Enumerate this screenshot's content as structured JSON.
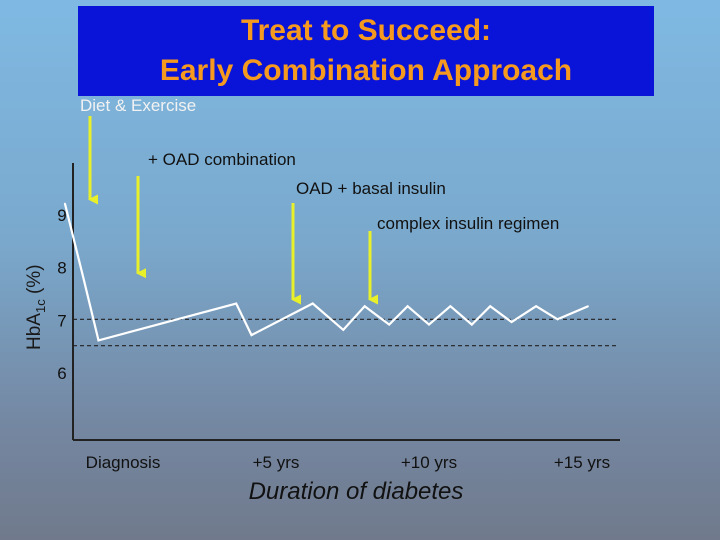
{
  "title": {
    "line1": "Treat to Succeed:",
    "line2": "Early Combination Approach"
  },
  "colors": {
    "title_bg": "#0a14d8",
    "title_text": "#f59a1e",
    "arrow": "#e8f02a",
    "line": "#ffffff",
    "axis": "#222222"
  },
  "chart_data": {
    "type": "line",
    "ylabel_main": "HbA",
    "ylabel_sub": "1c",
    "ylabel_unit": " (%)",
    "xlabel": "Duration of diabetes",
    "yticks": [
      9,
      8,
      7,
      6
    ],
    "xticks": [
      "Diagnosis",
      "+5 yrs",
      "+10 yrs",
      "+15 yrs"
    ],
    "ylim": [
      5,
      9.6
    ],
    "reference_lines": [
      7.0,
      6.5
    ],
    "series": [
      {
        "points": [
          [
            -1.9,
            9.2
          ],
          [
            -1.3,
            7.8
          ],
          [
            -0.8,
            6.6
          ],
          [
            3.7,
            7.3
          ],
          [
            4.2,
            6.7
          ],
          [
            6.2,
            7.3
          ],
          [
            7.2,
            6.8
          ],
          [
            7.9,
            7.25
          ],
          [
            8.7,
            6.9
          ],
          [
            9.3,
            7.25
          ],
          [
            10.0,
            6.9
          ],
          [
            10.7,
            7.25
          ],
          [
            11.4,
            6.9
          ],
          [
            12.0,
            7.25
          ],
          [
            12.7,
            6.95
          ],
          [
            13.5,
            7.25
          ],
          [
            14.2,
            7.0
          ],
          [
            15.2,
            7.25
          ]
        ]
      }
    ],
    "annotations": [
      {
        "text": "Diet & Exercise",
        "x": -1.9,
        "y": 9.2
      },
      {
        "text": "+ OAD combination",
        "x": -1.3,
        "y": 7.8
      },
      {
        "text": "OAD + basal insulin",
        "x": 3.7,
        "y": 7.3
      },
      {
        "text": "complex insulin regimen",
        "x": 6.2,
        "y": 7.3
      }
    ]
  }
}
